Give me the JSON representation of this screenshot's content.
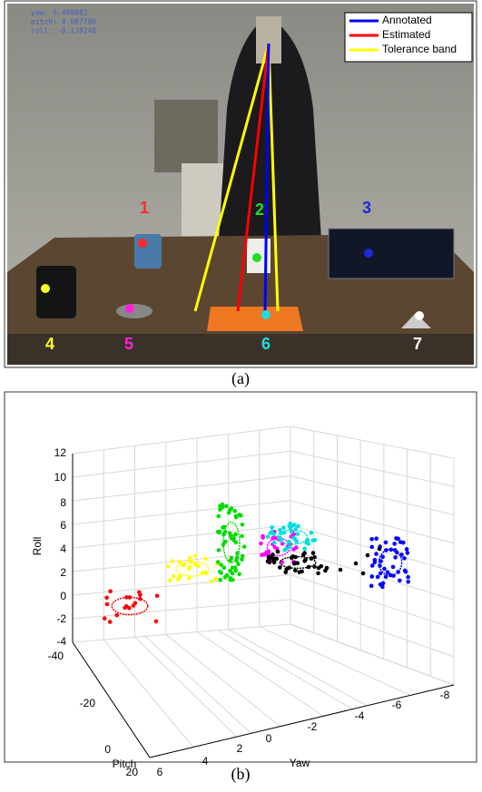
{
  "panel_a": {
    "overlay": [
      "yaw: 5.489982",
      "pitch: 4.087786",
      "roll: -0.128248"
    ],
    "legend": [
      {
        "name": "Annotated",
        "color": "#0000ff"
      },
      {
        "name": "Estimated",
        "color": "#ff0000"
      },
      {
        "name": "Tolerance band",
        "color": "#ffff00"
      }
    ],
    "objects": [
      {
        "label": "1",
        "color": "#ff2a2a"
      },
      {
        "label": "2",
        "color": "#22dd22"
      },
      {
        "label": "3",
        "color": "#1a2ad8"
      },
      {
        "label": "4",
        "color": "#ffff22"
      },
      {
        "label": "5",
        "color": "#ff22dd"
      },
      {
        "label": "6",
        "color": "#22dddd"
      },
      {
        "label": "7",
        "color": "#ffffff"
      }
    ],
    "caption": "(a)"
  },
  "panel_b": {
    "z_label": "Roll",
    "y_label": "Pitch",
    "x_label": "Yaw",
    "z_ticks": [
      "12",
      "10",
      "8",
      "6",
      "4",
      "2",
      "0",
      "-2",
      "-4"
    ],
    "y_ticks": [
      "-40",
      "-20",
      "0",
      "20"
    ],
    "x_ticks": [
      "6",
      "4",
      "2",
      "0",
      "-2",
      "-4",
      "-6",
      "-8"
    ],
    "caption": "(b)"
  }
}
